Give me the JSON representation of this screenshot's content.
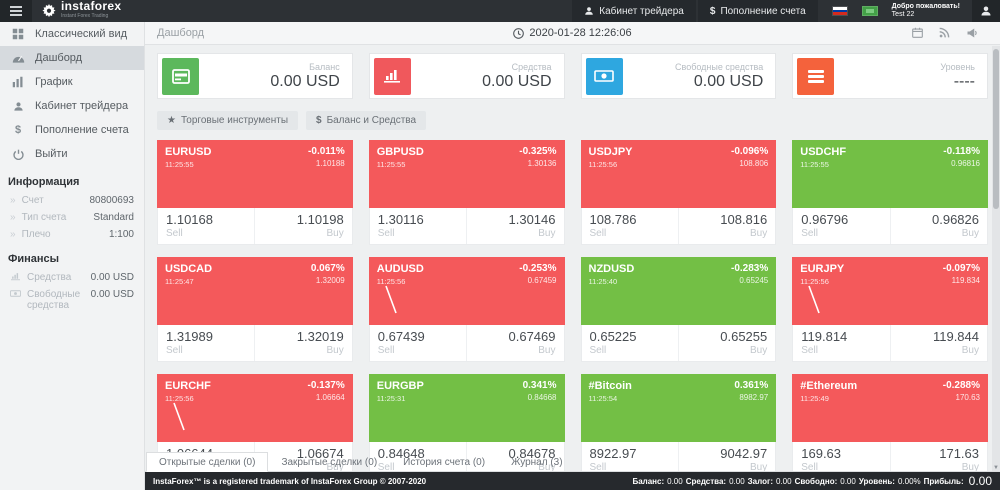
{
  "topbar": {
    "brand": "instaforex",
    "brand_sub": "Instant Forex Trading",
    "trader_cabinet": "Кабинет трейдера",
    "deposit": "Пополнение счета",
    "deposit_sign": "$",
    "welcome_line1": "Добро пожаловать!",
    "welcome_line2": "Test 22"
  },
  "sidebar": {
    "menu": [
      {
        "label": "Классический вид",
        "icon": "classic-view-icon",
        "active": false
      },
      {
        "label": "Дашборд",
        "icon": "dashboard-icon",
        "active": true
      },
      {
        "label": "График",
        "icon": "chart-icon",
        "active": false
      },
      {
        "label": "Кабинет трейдера",
        "icon": "user-icon",
        "active": false
      },
      {
        "label": "Пополнение счета",
        "icon": "dollar-icon",
        "active": false
      },
      {
        "label": "Выйти",
        "icon": "power-icon",
        "active": false
      }
    ],
    "info_title": "Информация",
    "info": [
      {
        "label": "Счет",
        "value": "80800693"
      },
      {
        "label": "Тип счета",
        "value": "Standard"
      },
      {
        "label": "Плечо",
        "value": "1:100"
      }
    ],
    "finance_title": "Финансы",
    "finance": [
      {
        "label": "Средства",
        "value": "0.00 USD",
        "icon": "bar-chart-icon"
      },
      {
        "label": "Свободные средства",
        "value": "0.00 USD",
        "icon": "banknote-icon"
      }
    ]
  },
  "header": {
    "breadcrumb": "Дашборд",
    "datetime": "2020-01-28 12:26:06"
  },
  "summary_cards": [
    {
      "label": "Баланс",
      "value": "0.00 USD",
      "icon": "credit-card-icon",
      "color": "#5cb85c"
    },
    {
      "label": "Средства",
      "value": "0.00 USD",
      "icon": "bar-chart-icon",
      "color": "#f0585c"
    },
    {
      "label": "Свободные средства",
      "value": "0.00 USD",
      "icon": "banknote-icon",
      "color": "#2ea7e0"
    },
    {
      "label": "Уровень",
      "value": "----",
      "icon": "list-icon",
      "color": "#f4623c"
    }
  ],
  "toolbar": {
    "instruments_label": "Торговые инструменты",
    "instruments_icon": "★",
    "balance_label": "Баланс и Средства",
    "balance_icon": "$"
  },
  "tile_labels": {
    "sell": "Sell",
    "buy": "Buy"
  },
  "colors": {
    "tile_red": "#f4595b",
    "tile_green": "#73bf45"
  },
  "tiles": [
    {
      "symbol": "EURUSD",
      "time": "11:25:55",
      "change": "-0.011%",
      "price": "1.10188",
      "sell": "1.10168",
      "buy": "1.10198",
      "trend": "red",
      "sparkline": false
    },
    {
      "symbol": "GBPUSD",
      "time": "11:25:55",
      "change": "-0.325%",
      "price": "1.30136",
      "sell": "1.30116",
      "buy": "1.30146",
      "trend": "red",
      "sparkline": false
    },
    {
      "symbol": "USDJPY",
      "time": "11:25:56",
      "change": "-0.096%",
      "price": "108.806",
      "sell": "108.786",
      "buy": "108.816",
      "trend": "red",
      "sparkline": false
    },
    {
      "symbol": "USDCHF",
      "time": "11:25:55",
      "change": "-0.118%",
      "price": "0.96816",
      "sell": "0.96796",
      "buy": "0.96826",
      "trend": "green",
      "sparkline": false
    },
    {
      "symbol": "USDCAD",
      "time": "11:25:47",
      "change": "0.067%",
      "price": "1.32009",
      "sell": "1.31989",
      "buy": "1.32019",
      "trend": "red",
      "sparkline": false
    },
    {
      "symbol": "AUDUSD",
      "time": "11:25:56",
      "change": "-0.253%",
      "price": "0.67459",
      "sell": "0.67439",
      "buy": "0.67469",
      "trend": "red",
      "sparkline": true
    },
    {
      "symbol": "NZDUSD",
      "time": "11:25:40",
      "change": "-0.283%",
      "price": "0.65245",
      "sell": "0.65225",
      "buy": "0.65255",
      "trend": "green",
      "sparkline": false
    },
    {
      "symbol": "EURJPY",
      "time": "11:25:56",
      "change": "-0.097%",
      "price": "119.834",
      "sell": "119.814",
      "buy": "119.844",
      "trend": "red",
      "sparkline": true
    },
    {
      "symbol": "EURCHF",
      "time": "11:25:56",
      "change": "-0.137%",
      "price": "1.06664",
      "sell": "1.06644",
      "buy": "1.06674",
      "trend": "red",
      "sparkline": true
    },
    {
      "symbol": "EURGBP",
      "time": "11:25:31",
      "change": "0.341%",
      "price": "0.84668",
      "sell": "0.84648",
      "buy": "0.84678",
      "trend": "green",
      "sparkline": false
    },
    {
      "symbol": "#Bitcoin",
      "time": "11:25:54",
      "change": "0.361%",
      "price": "8982.97",
      "sell": "8922.97",
      "buy": "9042.97",
      "trend": "green",
      "sparkline": false
    },
    {
      "symbol": "#Ethereum",
      "time": "11:25:49",
      "change": "-0.288%",
      "price": "170.63",
      "sell": "169.63",
      "buy": "171.63",
      "trend": "red",
      "sparkline": false
    }
  ],
  "tabs": [
    {
      "label": "Открытые сделки (0)",
      "active": true
    },
    {
      "label": "Закрытые сделки (0)",
      "active": false
    },
    {
      "label": "История счета (0)",
      "active": false
    },
    {
      "label": "Журнал (3)",
      "active": false
    }
  ],
  "footer": {
    "copyright": "InstaForex™ is a registered trademark of InstaForex Group © 2007-2020",
    "stats": [
      {
        "label": "Баланс:",
        "value": "0.00"
      },
      {
        "label": "Средства:",
        "value": "0.00"
      },
      {
        "label": "Залог:",
        "value": "0.00"
      },
      {
        "label": "Свободно:",
        "value": "0.00"
      },
      {
        "label": "Уровень:",
        "value": "0.00%"
      },
      {
        "label": "Прибыль:",
        "value": "0.00",
        "big": true
      }
    ]
  }
}
